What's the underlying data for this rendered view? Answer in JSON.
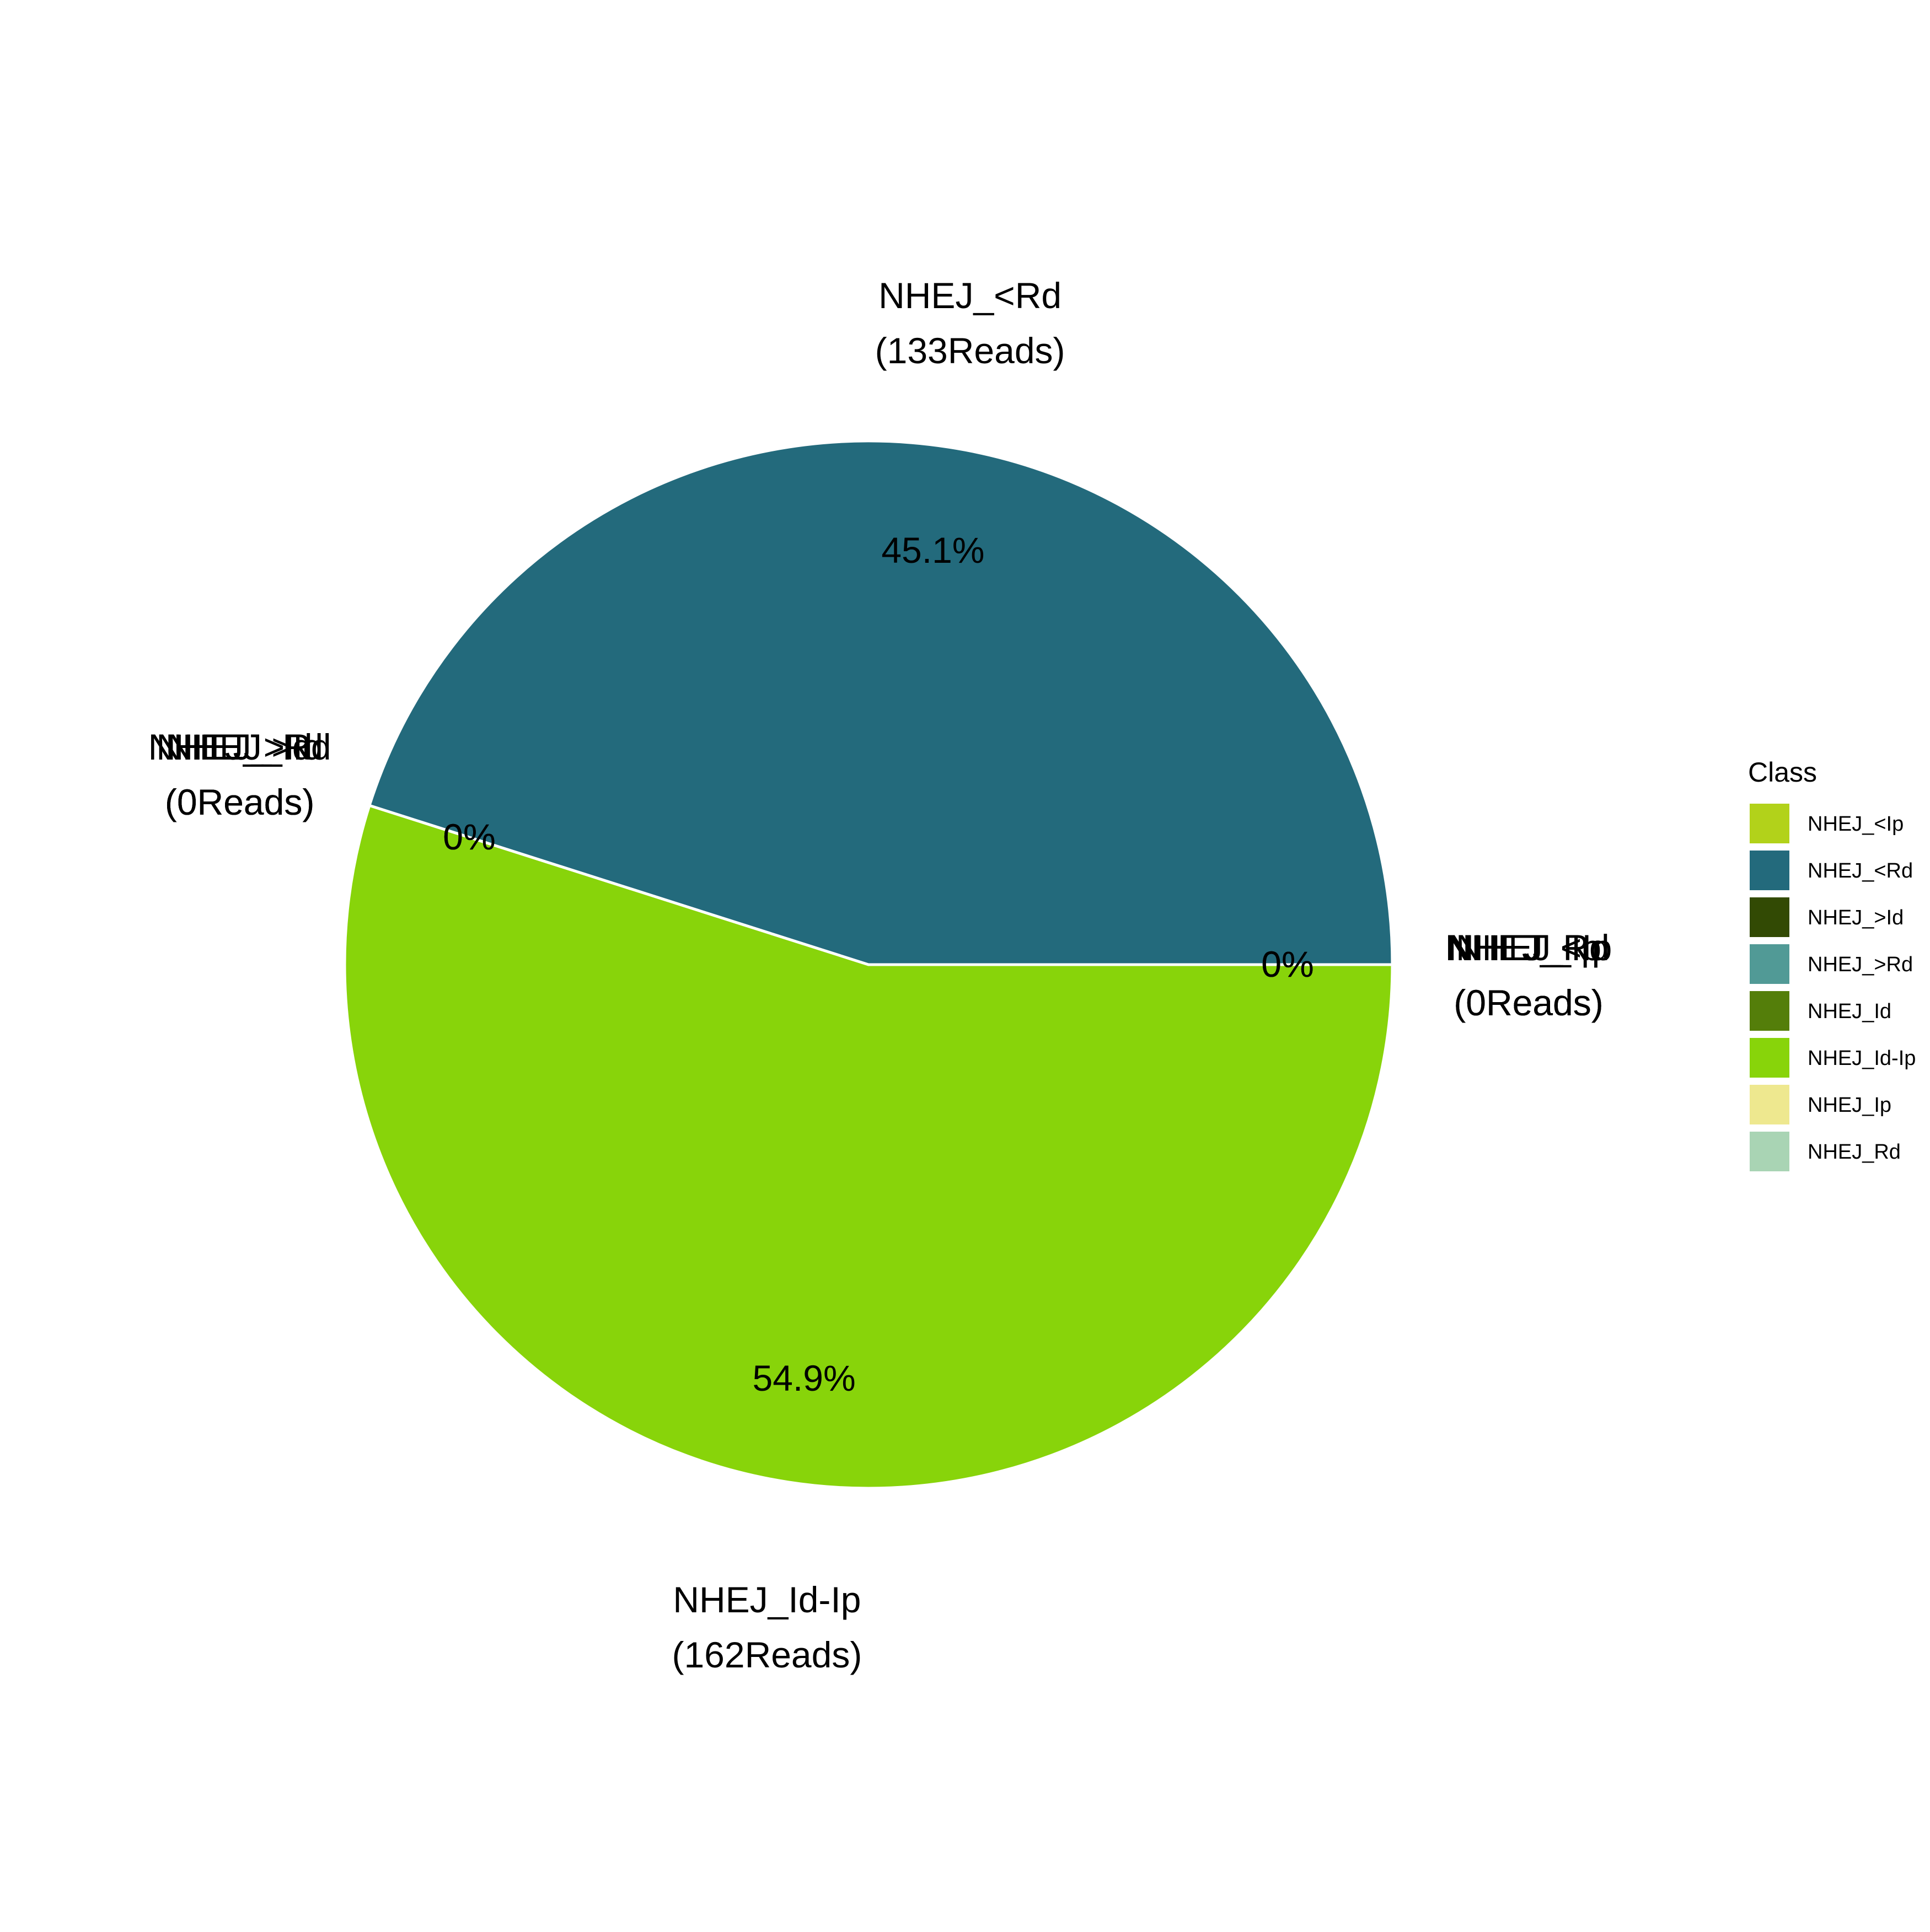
{
  "chart_data": {
    "type": "pie",
    "legend": {
      "title": "Class",
      "placement": "right",
      "entries": [
        {
          "label": "NHEJ_<Ip",
          "color": "#b2d21a"
        },
        {
          "label": "NHEJ_<Rd",
          "color": "#236a7c"
        },
        {
          "label": "NHEJ_>Id",
          "color": "#324a04"
        },
        {
          "label": "NHEJ_>Rd",
          "color": "#519a96"
        },
        {
          "label": "NHEJ_Id",
          "color": "#547e0a"
        },
        {
          "label": "NHEJ_Id-Ip",
          "color": "#88d40a"
        },
        {
          "label": "NHEJ_Ip",
          "color": "#eee88f"
        },
        {
          "label": "NHEJ_Rd",
          "color": "#a9d4b4"
        }
      ]
    },
    "slices": [
      {
        "category": "NHEJ_<Ip",
        "reads": 0,
        "percent": 0,
        "percent_text": "0%",
        "name_text": "NHEJ_<Ip",
        "reads_text": "(0Reads)",
        "color": "#b2d21a"
      },
      {
        "category": "NHEJ_<Rd",
        "reads": 133,
        "percent": 45.1,
        "percent_text": "45.1%",
        "name_text": "NHEJ_<Rd",
        "reads_text": "(133Reads)",
        "color": "#236a7c"
      },
      {
        "category": "NHEJ_>Id",
        "reads": 0,
        "percent": 0,
        "percent_text": "0%",
        "name_text": "NHEJ_>Id",
        "reads_text": "(0Reads)",
        "color": "#324a04"
      },
      {
        "category": "NHEJ_>Rd",
        "reads": 0,
        "percent": 0,
        "percent_text": "0%",
        "name_text": "NHEJ_>Rd",
        "reads_text": "(0Reads)",
        "color": "#519a96"
      },
      {
        "category": "NHEJ_Id",
        "reads": 0,
        "percent": 0,
        "percent_text": "0%",
        "name_text": "NHEJ_Id",
        "reads_text": "(0Reads)",
        "color": "#547e0a"
      },
      {
        "category": "NHEJ_Id-Ip",
        "reads": 162,
        "percent": 54.9,
        "percent_text": "54.9%",
        "name_text": "NHEJ_Id-Ip",
        "reads_text": "(162Reads)",
        "color": "#88d40a"
      },
      {
        "category": "NHEJ_Ip",
        "reads": 0,
        "percent": 0,
        "percent_text": "0%",
        "name_text": "NHEJ_Ip",
        "reads_text": "(0Reads)",
        "color": "#eee88f"
      },
      {
        "category": "NHEJ_Rd",
        "reads": 0,
        "percent": 0,
        "percent_text": "0%",
        "name_text": "NHEJ_Rd",
        "reads_text": "(0Reads)",
        "color": "#a9d4b4"
      }
    ]
  }
}
